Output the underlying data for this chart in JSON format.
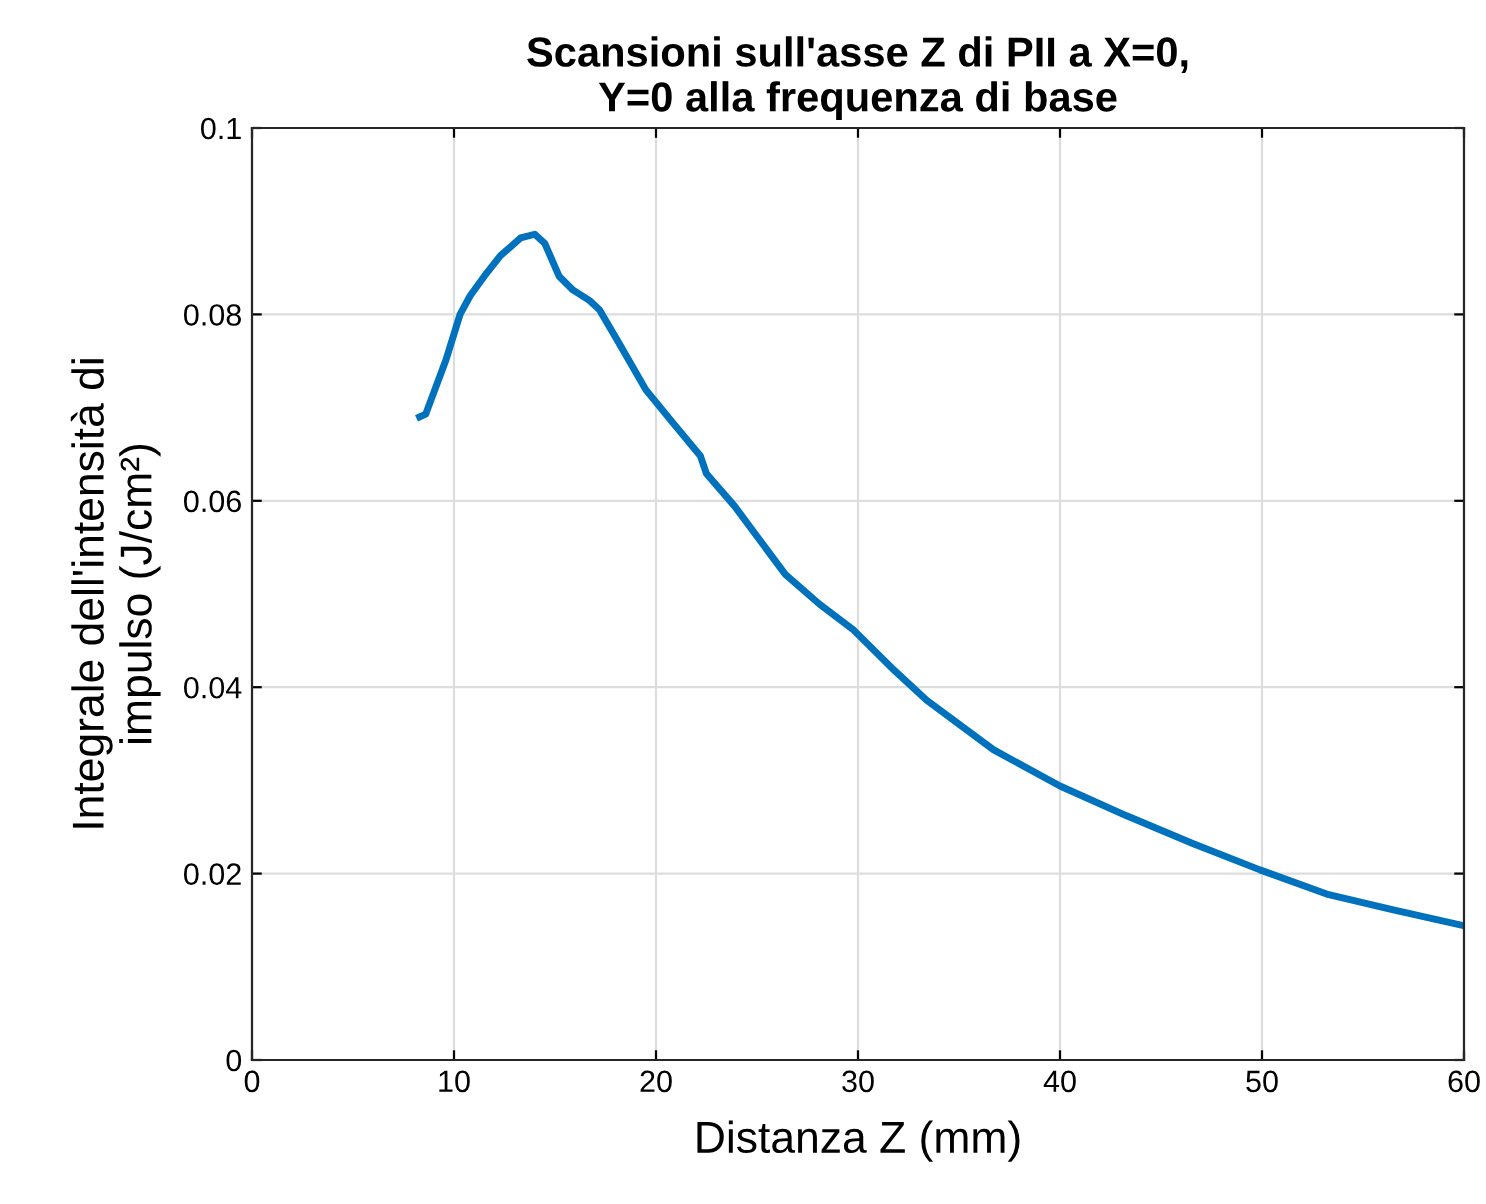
{
  "chart_data": {
    "type": "line",
    "title": "Scansioni sull'asse Z di PII a X=0,\nY=0 alla frequenza di base",
    "xlabel": "Distanza Z (mm)",
    "ylabel": "Integrale dell'intensità di\nimpulso (J/cm²)",
    "series": [
      {
        "color": "#0072bd",
        "x": [
          8.3,
          8.6,
          9.6,
          10.3,
          10.8,
          11.5,
          12.3,
          13.3,
          14.0,
          14.5,
          15.2,
          15.9,
          16.7,
          17.2,
          18.2,
          19.5,
          20.9,
          22.2,
          22.5,
          23.9,
          26.4,
          28.1,
          29.8,
          31.8,
          33.4,
          36.7,
          40.0,
          43.3,
          46.6,
          49.9,
          53.2,
          56.5,
          60.0
        ],
        "values": [
          0.069,
          0.0693,
          0.0751,
          0.08,
          0.082,
          0.0841,
          0.0863,
          0.0882,
          0.0886,
          0.0876,
          0.0841,
          0.0826,
          0.0815,
          0.0805,
          0.0768,
          0.0719,
          0.0682,
          0.0648,
          0.0629,
          0.0594,
          0.0521,
          0.0489,
          0.0461,
          0.0418,
          0.0386,
          0.0333,
          0.0294,
          0.0262,
          0.0232,
          0.0204,
          0.0178,
          0.0161,
          0.0144
        ]
      }
    ],
    "xlim": [
      0,
      60
    ],
    "xticks": [
      0,
      10,
      20,
      30,
      40,
      50,
      60
    ],
    "ylim": [
      0,
      0.1
    ],
    "yticks": [
      0,
      0.02,
      0.04,
      0.06,
      0.08,
      0.1
    ],
    "grid": true,
    "line_style": "solid",
    "marker": "none"
  }
}
